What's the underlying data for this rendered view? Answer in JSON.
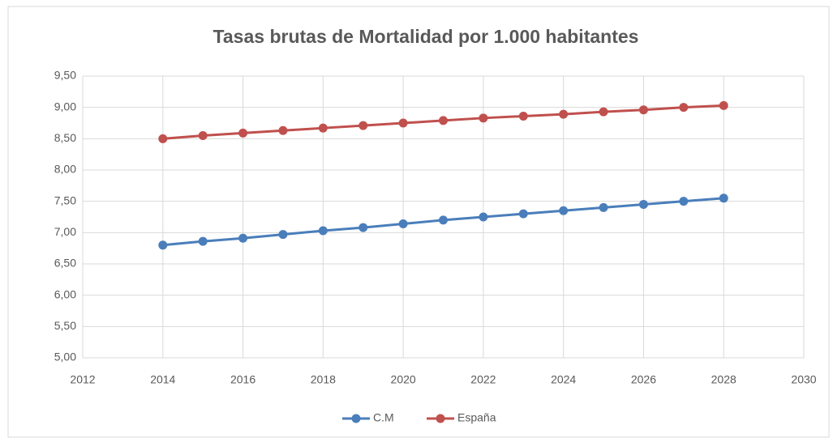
{
  "chart_data": {
    "type": "line",
    "title": "Tasas brutas de Mortalidad  por 1.000 habitantes",
    "x": [
      2014,
      2015,
      2016,
      2017,
      2018,
      2019,
      2020,
      2021,
      2022,
      2023,
      2024,
      2025,
      2026,
      2027,
      2028
    ],
    "series": [
      {
        "name": "C.M",
        "color": "#4a7ebb",
        "values": [
          6.8,
          6.86,
          6.91,
          6.97,
          7.03,
          7.08,
          7.14,
          7.2,
          7.25,
          7.3,
          7.35,
          7.4,
          7.45,
          7.5,
          7.55
        ]
      },
      {
        "name": "España",
        "color": "#c0504d",
        "values": [
          8.5,
          8.55,
          8.59,
          8.63,
          8.67,
          8.71,
          8.75,
          8.79,
          8.83,
          8.86,
          8.89,
          8.93,
          8.96,
          9.0,
          9.03
        ]
      }
    ],
    "xlim": [
      2012,
      2030
    ],
    "xticks": [
      2012,
      2014,
      2016,
      2018,
      2020,
      2022,
      2024,
      2026,
      2028,
      2030
    ],
    "ylim": [
      5,
      9.5
    ],
    "yticks": [
      {
        "value": 5,
        "label": "5,00"
      },
      {
        "value": 5.5,
        "label": "5,50"
      },
      {
        "value": 6,
        "label": "6,00"
      },
      {
        "value": 6.5,
        "label": "6,50"
      },
      {
        "value": 7,
        "label": "7,00"
      },
      {
        "value": 7.5,
        "label": "7,50"
      },
      {
        "value": 8,
        "label": "8,00"
      },
      {
        "value": 8.5,
        "label": "8,50"
      },
      {
        "value": 9,
        "label": "9,00"
      },
      {
        "value": 9.5,
        "label": "9,50"
      }
    ],
    "grid": true,
    "legend": "bottom"
  }
}
